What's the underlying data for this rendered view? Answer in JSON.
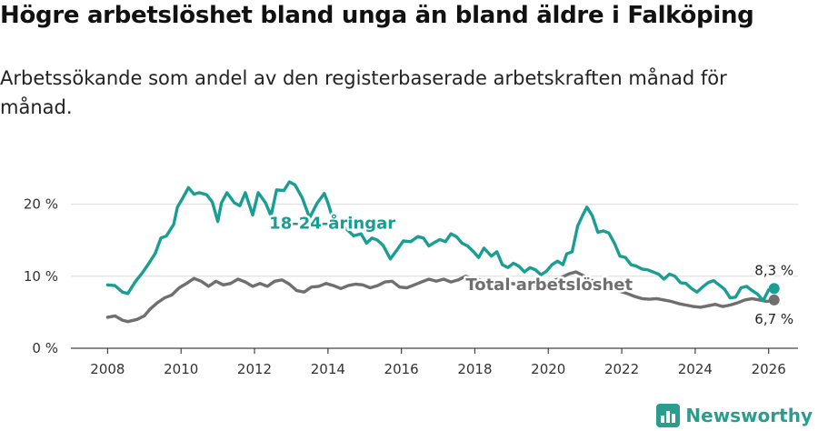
{
  "title": "Högre arbetslöshet bland unga än bland äldre i Falköping",
  "subtitle": "Arbetssökande som andel av den registerbaserade arbetskraften månad för månad.",
  "brand": "Newsworthy",
  "colors": {
    "youth": "#1a9e94",
    "total": "#6f6f6f",
    "grid": "#dcdcdc"
  },
  "chart_data": {
    "type": "line",
    "title": "Högre arbetslöshet bland unga än bland äldre i Falköping",
    "xlabel": "",
    "ylabel": "",
    "xlim": [
      2007.0,
      2026.8
    ],
    "ylim": [
      0,
      25
    ],
    "x_ticks": [
      2008,
      2010,
      2012,
      2014,
      2016,
      2018,
      2020,
      2022,
      2024,
      2026
    ],
    "y_ticks": [
      {
        "value": 0,
        "label": "0 %"
      },
      {
        "value": 10,
        "label": "10 %"
      },
      {
        "value": 20,
        "label": "20 %"
      }
    ],
    "grid": true,
    "series": [
      {
        "name": "18-24-åringar",
        "color": "#1a9e94",
        "label": "18-24-åringar",
        "end_label": "8,3 %",
        "end_value": 8.3,
        "points": [
          [
            2008.0,
            8.8
          ],
          [
            2008.2,
            8.7
          ],
          [
            2008.4,
            7.8
          ],
          [
            2008.55,
            7.6
          ],
          [
            2008.75,
            9.2
          ],
          [
            2008.95,
            10.5
          ],
          [
            2009.1,
            11.6
          ],
          [
            2009.3,
            13.2
          ],
          [
            2009.45,
            15.3
          ],
          [
            2009.6,
            15.6
          ],
          [
            2009.8,
            17.2
          ],
          [
            2009.9,
            19.6
          ],
          [
            2010.05,
            20.9
          ],
          [
            2010.2,
            22.3
          ],
          [
            2010.35,
            21.4
          ],
          [
            2010.5,
            21.6
          ],
          [
            2010.7,
            21.3
          ],
          [
            2010.85,
            20.3
          ],
          [
            2011.0,
            17.6
          ],
          [
            2011.1,
            20.2
          ],
          [
            2011.25,
            21.6
          ],
          [
            2011.45,
            20.2
          ],
          [
            2011.6,
            19.8
          ],
          [
            2011.75,
            21.6
          ],
          [
            2011.95,
            18.5
          ],
          [
            2012.1,
            21.6
          ],
          [
            2012.3,
            20.2
          ],
          [
            2012.45,
            18.4
          ],
          [
            2012.6,
            22.0
          ],
          [
            2012.8,
            21.9
          ],
          [
            2012.95,
            23.1
          ],
          [
            2013.1,
            22.7
          ],
          [
            2013.3,
            20.9
          ],
          [
            2013.5,
            18.1
          ],
          [
            2013.7,
            20.1
          ],
          [
            2013.9,
            21.5
          ],
          [
            2014.0,
            20.2
          ],
          [
            2014.1,
            18.5
          ],
          [
            2014.3,
            17.1
          ],
          [
            2014.5,
            16.6
          ],
          [
            2014.7,
            15.6
          ],
          [
            2014.9,
            15.9
          ],
          [
            2015.05,
            14.6
          ],
          [
            2015.2,
            15.3
          ],
          [
            2015.35,
            15.0
          ],
          [
            2015.5,
            14.3
          ],
          [
            2015.7,
            12.4
          ],
          [
            2015.9,
            13.8
          ],
          [
            2016.05,
            14.9
          ],
          [
            2016.25,
            14.8
          ],
          [
            2016.45,
            15.5
          ],
          [
            2016.6,
            15.3
          ],
          [
            2016.75,
            14.2
          ],
          [
            2016.9,
            14.7
          ],
          [
            2017.05,
            15.1
          ],
          [
            2017.2,
            14.8
          ],
          [
            2017.35,
            15.9
          ],
          [
            2017.5,
            15.5
          ],
          [
            2017.65,
            14.6
          ],
          [
            2017.8,
            14.2
          ],
          [
            2017.95,
            13.5
          ],
          [
            2018.1,
            12.6
          ],
          [
            2018.25,
            13.9
          ],
          [
            2018.45,
            12.8
          ],
          [
            2018.6,
            13.4
          ],
          [
            2018.75,
            11.6
          ],
          [
            2018.9,
            11.2
          ],
          [
            2019.05,
            11.8
          ],
          [
            2019.2,
            11.4
          ],
          [
            2019.35,
            10.6
          ],
          [
            2019.5,
            11.2
          ],
          [
            2019.65,
            10.9
          ],
          [
            2019.8,
            10.2
          ],
          [
            2019.95,
            10.7
          ],
          [
            2020.1,
            11.6
          ],
          [
            2020.25,
            12.1
          ],
          [
            2020.4,
            11.6
          ],
          [
            2020.5,
            13.1
          ],
          [
            2020.65,
            13.4
          ],
          [
            2020.8,
            17.0
          ],
          [
            2020.95,
            18.6
          ],
          [
            2021.05,
            19.6
          ],
          [
            2021.2,
            18.4
          ],
          [
            2021.35,
            16.1
          ],
          [
            2021.5,
            16.3
          ],
          [
            2021.65,
            16.0
          ],
          [
            2021.8,
            14.6
          ],
          [
            2021.95,
            12.8
          ],
          [
            2022.1,
            12.6
          ],
          [
            2022.25,
            11.6
          ],
          [
            2022.4,
            11.4
          ],
          [
            2022.55,
            11.0
          ],
          [
            2022.7,
            10.9
          ],
          [
            2022.85,
            10.6
          ],
          [
            2023.0,
            10.3
          ],
          [
            2023.15,
            9.6
          ],
          [
            2023.3,
            10.3
          ],
          [
            2023.45,
            10.0
          ],
          [
            2023.6,
            9.1
          ],
          [
            2023.75,
            9.0
          ],
          [
            2023.9,
            8.3
          ],
          [
            2024.05,
            7.8
          ],
          [
            2024.2,
            8.5
          ],
          [
            2024.35,
            9.1
          ],
          [
            2024.5,
            9.4
          ],
          [
            2024.65,
            8.8
          ],
          [
            2024.8,
            8.2
          ],
          [
            2024.95,
            7.0
          ],
          [
            2025.1,
            7.1
          ],
          [
            2025.25,
            8.4
          ],
          [
            2025.4,
            8.6
          ],
          [
            2025.55,
            8.0
          ],
          [
            2025.7,
            7.5
          ],
          [
            2025.85,
            6.6
          ],
          [
            2026.0,
            8.1
          ],
          [
            2026.15,
            8.3
          ]
        ]
      },
      {
        "name": "Total arbetslöshet",
        "color": "#6f6f6f",
        "label": "Total arbetslöshet",
        "end_label": "6,7 %",
        "end_value": 6.7,
        "points": [
          [
            2008.0,
            4.3
          ],
          [
            2008.2,
            4.5
          ],
          [
            2008.4,
            3.9
          ],
          [
            2008.55,
            3.7
          ],
          [
            2008.8,
            4.0
          ],
          [
            2009.0,
            4.5
          ],
          [
            2009.15,
            5.4
          ],
          [
            2009.35,
            6.3
          ],
          [
            2009.55,
            7.0
          ],
          [
            2009.75,
            7.4
          ],
          [
            2009.95,
            8.4
          ],
          [
            2010.15,
            9.0
          ],
          [
            2010.35,
            9.7
          ],
          [
            2010.55,
            9.3
          ],
          [
            2010.75,
            8.6
          ],
          [
            2010.95,
            9.3
          ],
          [
            2011.15,
            8.8
          ],
          [
            2011.35,
            9.0
          ],
          [
            2011.55,
            9.6
          ],
          [
            2011.75,
            9.2
          ],
          [
            2011.95,
            8.6
          ],
          [
            2012.15,
            9.0
          ],
          [
            2012.35,
            8.6
          ],
          [
            2012.55,
            9.3
          ],
          [
            2012.75,
            9.5
          ],
          [
            2012.95,
            8.9
          ],
          [
            2013.15,
            8.0
          ],
          [
            2013.35,
            7.8
          ],
          [
            2013.55,
            8.5
          ],
          [
            2013.75,
            8.6
          ],
          [
            2013.95,
            9.0
          ],
          [
            2014.15,
            8.7
          ],
          [
            2014.35,
            8.3
          ],
          [
            2014.55,
            8.7
          ],
          [
            2014.75,
            8.9
          ],
          [
            2014.95,
            8.8
          ],
          [
            2015.15,
            8.4
          ],
          [
            2015.35,
            8.7
          ],
          [
            2015.55,
            9.2
          ],
          [
            2015.75,
            9.3
          ],
          [
            2015.95,
            8.5
          ],
          [
            2016.15,
            8.4
          ],
          [
            2016.35,
            8.8
          ],
          [
            2016.55,
            9.2
          ],
          [
            2016.75,
            9.6
          ],
          [
            2016.95,
            9.3
          ],
          [
            2017.15,
            9.6
          ],
          [
            2017.35,
            9.2
          ],
          [
            2017.55,
            9.5
          ],
          [
            2017.75,
            10.0
          ],
          [
            2017.95,
            9.7
          ],
          [
            2018.15,
            9.5
          ],
          [
            2018.35,
            8.9
          ],
          [
            2018.55,
            8.8
          ],
          [
            2018.75,
            8.7
          ],
          [
            2018.95,
            9.0
          ],
          [
            2019.15,
            8.9
          ],
          [
            2019.35,
            9.1
          ],
          [
            2019.55,
            8.9
          ],
          [
            2019.75,
            8.7
          ],
          [
            2019.95,
            9.1
          ],
          [
            2020.15,
            9.4
          ],
          [
            2020.35,
            9.8
          ],
          [
            2020.55,
            10.3
          ],
          [
            2020.75,
            10.6
          ],
          [
            2020.95,
            10.1
          ],
          [
            2021.15,
            9.5
          ],
          [
            2021.35,
            9.1
          ],
          [
            2021.55,
            8.5
          ],
          [
            2021.75,
            8.3
          ],
          [
            2021.95,
            7.9
          ],
          [
            2022.15,
            7.6
          ],
          [
            2022.35,
            7.2
          ],
          [
            2022.55,
            6.9
          ],
          [
            2022.75,
            6.8
          ],
          [
            2022.95,
            6.9
          ],
          [
            2023.15,
            6.7
          ],
          [
            2023.35,
            6.5
          ],
          [
            2023.55,
            6.2
          ],
          [
            2023.75,
            6.0
          ],
          [
            2023.95,
            5.8
          ],
          [
            2024.15,
            5.7
          ],
          [
            2024.35,
            5.9
          ],
          [
            2024.55,
            6.1
          ],
          [
            2024.75,
            5.8
          ],
          [
            2024.95,
            6.0
          ],
          [
            2025.15,
            6.3
          ],
          [
            2025.35,
            6.7
          ],
          [
            2025.55,
            6.9
          ],
          [
            2025.75,
            6.7
          ],
          [
            2025.95,
            6.5
          ],
          [
            2026.15,
            6.7
          ]
        ]
      }
    ]
  }
}
